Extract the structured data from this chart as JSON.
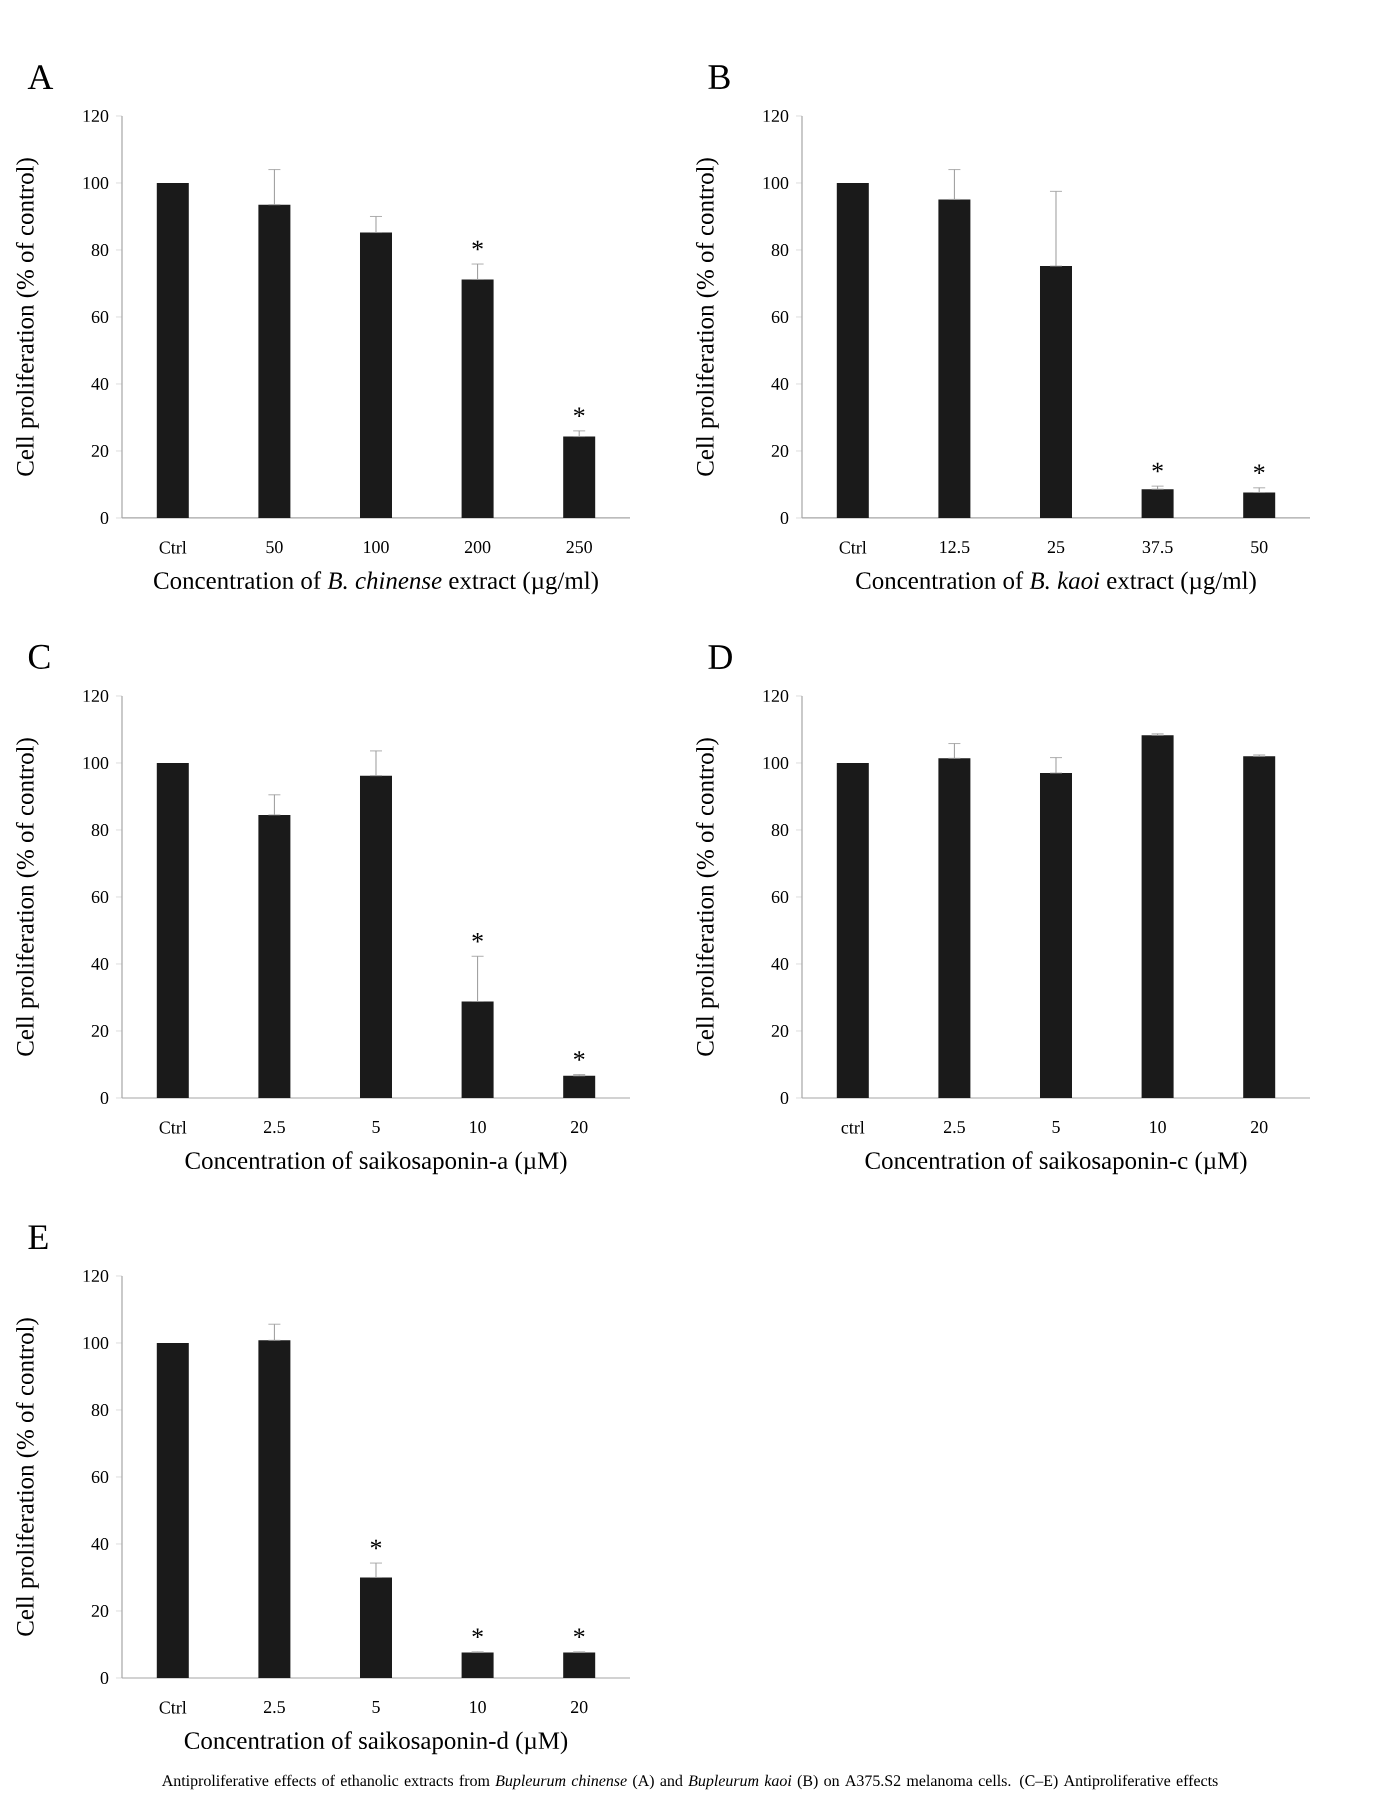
{
  "chart_data": [
    {
      "type": "bar",
      "title": "A",
      "xlabel": "Concentration of *B. chinense* extract (µg/ml)",
      "ylabel": "Cell proliferation (% of control)",
      "categories": [
        "Ctrl",
        "50",
        "100",
        "200",
        "250"
      ],
      "values": [
        100,
        93.5,
        85.2,
        71.2,
        24.3
      ],
      "color": "#1a1a1a",
      "errors": [
        null,
        [
          93.5,
          104
        ],
        [
          85.2,
          90
        ],
        [
          71.2,
          75.8
        ],
        [
          24.3,
          26
        ]
      ],
      "ylim": [
        0,
        120
      ],
      "yticks": [
        0,
        20,
        40,
        60,
        80,
        100,
        120
      ],
      "annotations": [
        {
          "text": "*",
          "x": "200",
          "y": 71.2
        },
        {
          "text": "*",
          "x": "250",
          "y": 24.3
        }
      ]
    },
    {
      "type": "bar",
      "title": "B",
      "xlabel": "Concentration of *B. kaoi* extract (µg/ml)",
      "ylabel": "Cell proliferation (% of control)",
      "categories": [
        "Ctrl",
        "12.5",
        "25",
        "37.5",
        "50"
      ],
      "values": [
        100,
        95.1,
        75.2,
        8.6,
        7.6
      ],
      "color": "#1a1a1a",
      "errors": [
        null,
        [
          95.1,
          104
        ],
        [
          75.2,
          97.5
        ],
        [
          8.6,
          9.5
        ],
        [
          7.6,
          9
        ]
      ],
      "ylim": [
        0,
        120
      ],
      "yticks": [
        0,
        20,
        40,
        60,
        80,
        100,
        120
      ],
      "annotations": [
        {
          "text": "*",
          "x": "37.5",
          "y": 8.6
        },
        {
          "text": "*",
          "x": "50",
          "y": 7.6
        }
      ]
    },
    {
      "type": "bar",
      "title": "C",
      "xlabel": "Concentration of saikosaponin-a (µM)",
      "ylabel": "Cell proliferation (% of control)",
      "categories": [
        "Ctrl",
        "2.5",
        "5",
        "10",
        "20"
      ],
      "values": [
        100,
        84.5,
        96.2,
        28.8,
        6.6
      ],
      "color": "#1a1a1a",
      "errors": [
        null,
        [
          84.5,
          90.5
        ],
        [
          96.2,
          103.6
        ],
        [
          28.8,
          42.3
        ],
        [
          6.6,
          7
        ]
      ],
      "ylim": [
        0,
        120
      ],
      "yticks": [
        0,
        20,
        40,
        60,
        80,
        100,
        120
      ],
      "annotations": [
        {
          "text": "*",
          "x": "10",
          "y": 28.8
        },
        {
          "text": "*",
          "x": "20",
          "y": 6.6
        }
      ]
    },
    {
      "type": "bar",
      "title": "D",
      "xlabel": "Concentration of saikosaponin-c (µM)",
      "ylabel": "Cell proliferation (% of control)",
      "categories": [
        "ctrl",
        "2.5",
        "5",
        "10",
        "20"
      ],
      "values": [
        100,
        101.4,
        97,
        108.3,
        102
      ],
      "color": "#1a1a1a",
      "errors": [
        null,
        [
          101.4,
          105.8
        ],
        [
          97,
          101.6
        ],
        [
          108.3,
          108.7
        ],
        [
          102,
          102.4
        ]
      ],
      "ylim": [
        0,
        120
      ],
      "yticks": [
        0,
        20,
        40,
        60,
        80,
        100,
        120
      ]
    },
    {
      "type": "bar",
      "title": "E",
      "xlabel": "Concentration of saikosaponin-d (µM)",
      "ylabel": "Cell proliferation (% of control)",
      "categories": [
        "Ctrl",
        "2.5",
        "5",
        "10",
        "20"
      ],
      "values": [
        100,
        100.8,
        30,
        7.6,
        7.6
      ],
      "color": "#1a1a1a",
      "errors": [
        null,
        [
          100.8,
          105.6
        ],
        [
          30,
          34.3
        ],
        [
          7.6,
          7.8
        ],
        [
          7.6,
          7.8
        ]
      ],
      "ylim": [
        0,
        120
      ],
      "yticks": [
        0,
        20,
        40,
        60,
        80,
        100,
        120
      ],
      "annotations": [
        {
          "text": "*",
          "x": "5",
          "y": 30
        },
        {
          "text": "*",
          "x": "10",
          "y": 7.6
        },
        {
          "text": "*",
          "x": "20",
          "y": 7.6
        },
        "Antiproliferative effects of ethanolic extracts from *Bupleurum chinense* (A) and *Bupleurum kaoi* (B) on A375.S2 melanoma cells. (C–E) Antiproliferative effects"
      ]
    }
  ]
}
